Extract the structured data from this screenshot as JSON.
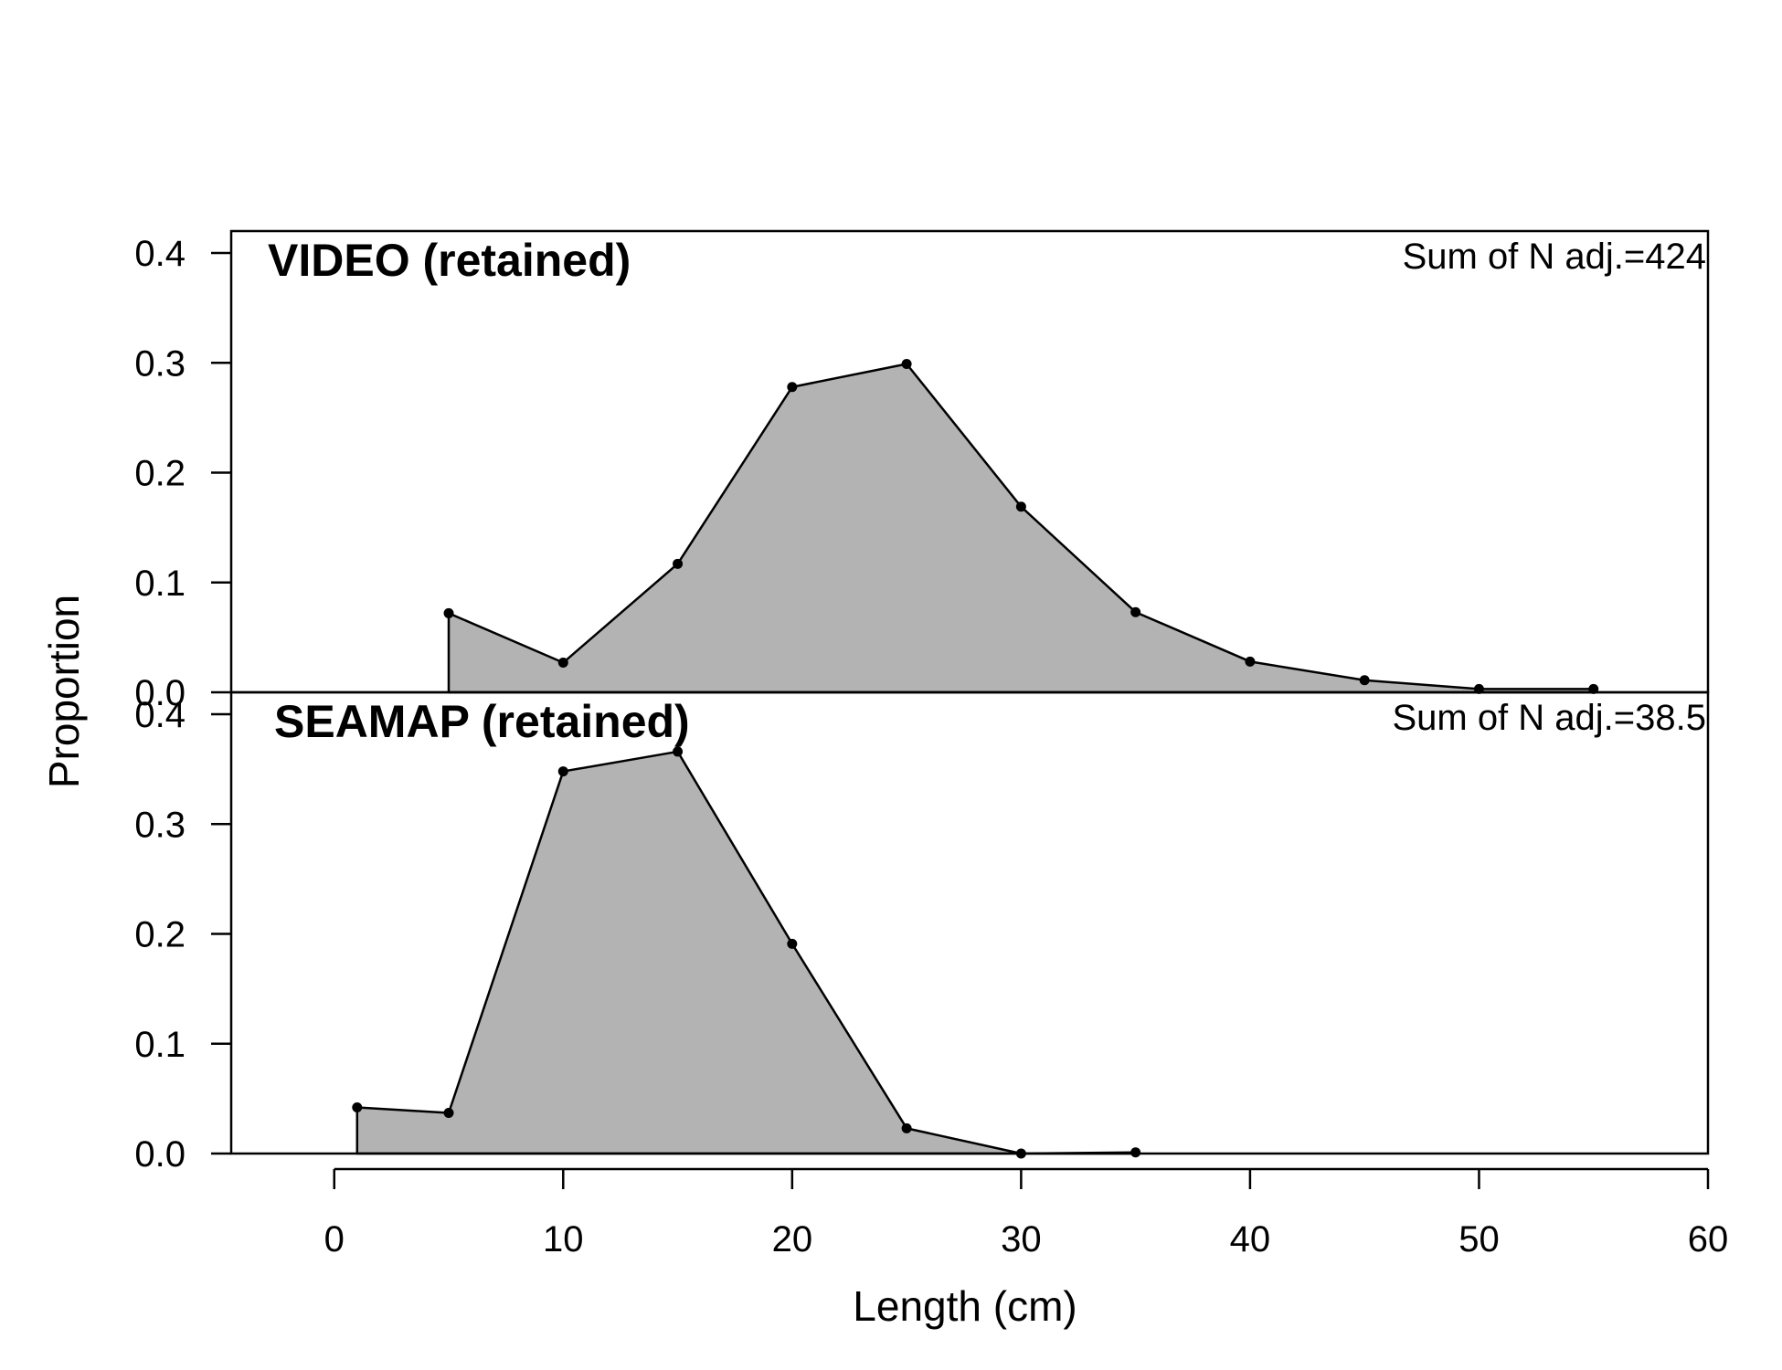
{
  "chart_data": {
    "type": "area",
    "xlabel": "Length (cm)",
    "ylabel": "Proportion",
    "xlim": [
      -4.5,
      60
    ],
    "x_ticks": [
      0,
      10,
      20,
      30,
      40,
      50,
      60
    ],
    "ylim": [
      0,
      0.42
    ],
    "y_ticks": [
      "0.0",
      "0.1",
      "0.2",
      "0.3",
      "0.4"
    ],
    "grid": false,
    "fill_color": "#b3b3b3",
    "line_color": "#000000",
    "panels": [
      {
        "title": "VIDEO (retained)",
        "note": "Sum of N adj.=424",
        "x": [
          5,
          10,
          15,
          20,
          25,
          30,
          35,
          40,
          45,
          50,
          55
        ],
        "y": [
          0.072,
          0.027,
          0.117,
          0.278,
          0.299,
          0.169,
          0.073,
          0.028,
          0.011,
          0.003,
          0.003
        ]
      },
      {
        "title": "SEAMAP (retained)",
        "note": "Sum of N adj.=38.5",
        "x": [
          1,
          5,
          10,
          15,
          20,
          25,
          30,
          35
        ],
        "y": [
          0.042,
          0.037,
          0.348,
          0.366,
          0.191,
          0.023,
          0.0,
          0.001
        ]
      }
    ]
  }
}
